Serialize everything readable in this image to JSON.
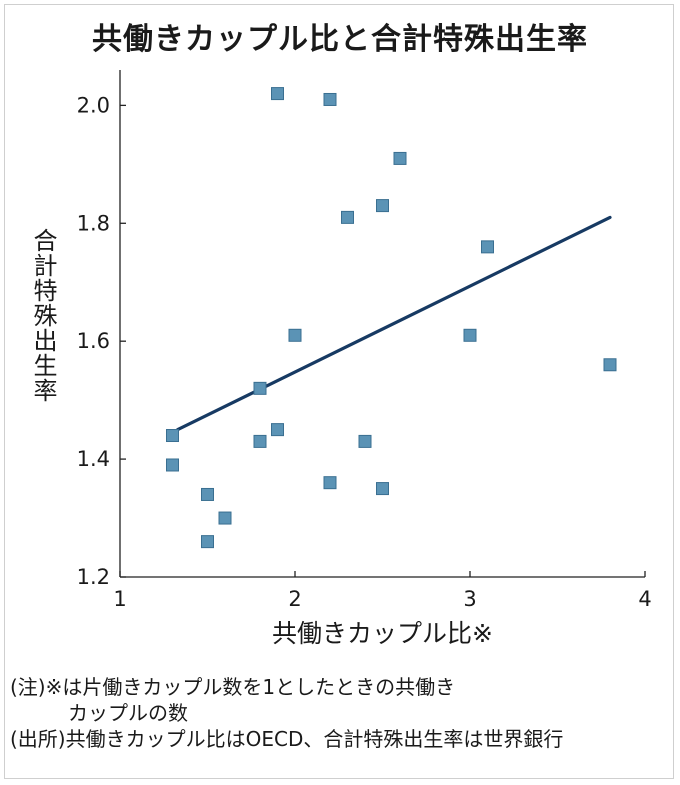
{
  "title": "共働きカップル比と合計特殊出生率",
  "chart_data": {
    "type": "scatter",
    "xlabel": "共働きカップル比※",
    "ylabel": "合計特殊出生率",
    "xlim": [
      1,
      4
    ],
    "ylim": [
      1.2,
      2.06
    ],
    "xticks": [
      "1",
      "2",
      "3",
      "4"
    ],
    "yticks": [
      "1.2",
      "1.4",
      "1.6",
      "1.8",
      "2.0"
    ],
    "xtick_values": [
      1,
      2,
      3,
      4
    ],
    "ytick_values": [
      1.2,
      1.4,
      1.6,
      1.8,
      2.0
    ],
    "points": [
      {
        "x": 1.9,
        "y": 2.02
      },
      {
        "x": 2.2,
        "y": 2.01
      },
      {
        "x": 2.6,
        "y": 1.91
      },
      {
        "x": 2.5,
        "y": 1.83
      },
      {
        "x": 2.3,
        "y": 1.81
      },
      {
        "x": 3.1,
        "y": 1.76
      },
      {
        "x": 2.0,
        "y": 1.61
      },
      {
        "x": 3.0,
        "y": 1.61
      },
      {
        "x": 3.8,
        "y": 1.56
      },
      {
        "x": 1.8,
        "y": 1.52
      },
      {
        "x": 1.9,
        "y": 1.45
      },
      {
        "x": 1.3,
        "y": 1.44
      },
      {
        "x": 1.8,
        "y": 1.43
      },
      {
        "x": 2.4,
        "y": 1.43
      },
      {
        "x": 1.3,
        "y": 1.39
      },
      {
        "x": 2.2,
        "y": 1.36
      },
      {
        "x": 2.5,
        "y": 1.35
      },
      {
        "x": 1.5,
        "y": 1.34
      },
      {
        "x": 1.6,
        "y": 1.3
      },
      {
        "x": 1.5,
        "y": 1.26
      }
    ],
    "trendline": {
      "x": [
        1.33,
        3.8
      ],
      "y": [
        1.45,
        1.81
      ]
    },
    "marker_color": "#5b93b5",
    "marker_edge_color": "#3a6f91",
    "line_color": "#173a63",
    "grid": false
  },
  "notes": {
    "line1": "(注)※は片働きカップル数を1としたときの共働き",
    "line2": "カップルの数",
    "line3": "(出所)共働きカップル比はOECD、合計特殊出生率は世界銀行"
  }
}
